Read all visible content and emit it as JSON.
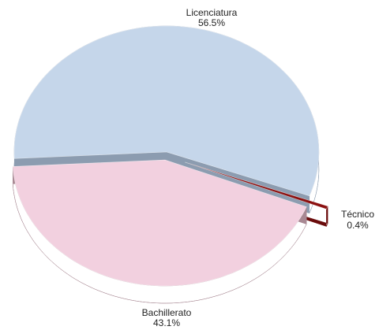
{
  "chart_data": {
    "type": "pie",
    "categories": [
      "Licenciatura",
      "Técnico",
      "Bachillerato"
    ],
    "values": [
      56.5,
      0.4,
      43.1
    ],
    "value_labels": [
      "56.5%",
      "0.4%",
      "43.1%"
    ],
    "colors": [
      "#c5d6ea",
      "#8b1010",
      "#f2d0df"
    ],
    "side_colors": [
      "#8c9cb0",
      "#6a0b0b",
      "#a88893"
    ]
  }
}
